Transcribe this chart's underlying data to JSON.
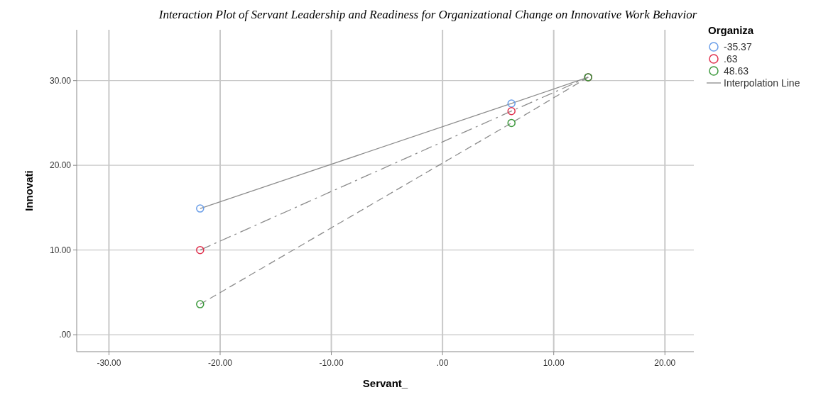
{
  "chart_data": {
    "type": "line",
    "title": "Interaction Plot of Servant Leadership and Readiness for Organizational Change on Innovative Work Behavior",
    "xlabel": "Servant_",
    "ylabel": "Innovati",
    "legend_title": "Organiza",
    "legend": "top right",
    "grid": true,
    "marker": "circle",
    "x": [
      -21.8,
      6.2,
      13.1
    ],
    "series": [
      {
        "name": "-35.37",
        "color": "#6a9ee8",
        "line_style": "solid",
        "values": [
          14.9,
          27.3,
          30.4
        ]
      },
      {
        "name": ".63",
        "color": "#e0334f",
        "line_style": "dashdot",
        "values": [
          10.0,
          26.4,
          30.4
        ]
      },
      {
        "name": "48.63",
        "color": "#3e9a3e",
        "line_style": "dashed",
        "values": [
          3.6,
          25.0,
          30.4
        ]
      }
    ],
    "annotations": [
      "Interpolation Line"
    ],
    "xlim": [
      -32.9,
      22.6
    ],
    "xticks": [
      {
        "value": -30,
        "label": "-30.00"
      },
      {
        "value": -20,
        "label": "-20.00"
      },
      {
        "value": -10,
        "label": "-10.00"
      },
      {
        "value": 0,
        "label": ".00"
      },
      {
        "value": 10,
        "label": "10.00"
      },
      {
        "value": 20,
        "label": "20.00"
      }
    ],
    "ylim": [
      -2,
      36
    ],
    "yticks": [
      {
        "value": 0,
        "label": ".00"
      },
      {
        "value": 10,
        "label": "10.00"
      },
      {
        "value": 20,
        "label": "20.00"
      },
      {
        "value": 30,
        "label": "30.00"
      }
    ]
  }
}
